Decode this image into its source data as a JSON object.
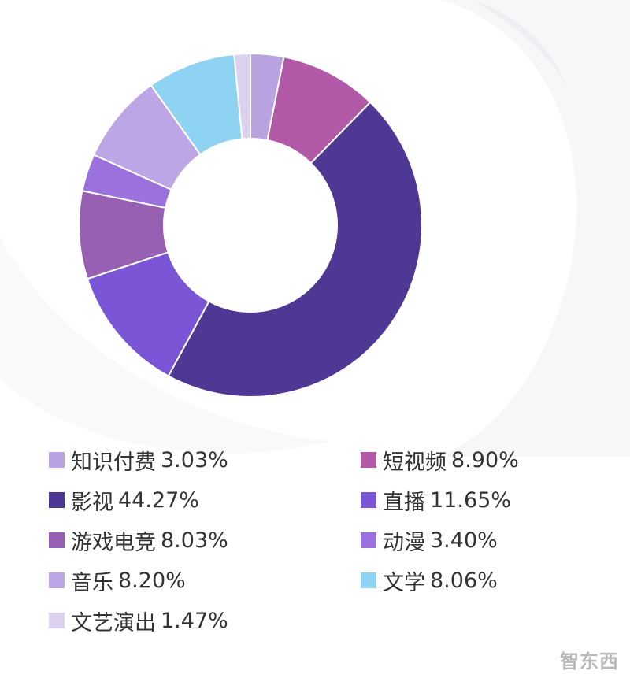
{
  "chart_data": {
    "type": "pie",
    "donut": true,
    "slices": [
      {
        "label": "知识付费",
        "value": 3.03,
        "display": "3.03%",
        "color": "#b8a3e0"
      },
      {
        "label": "短视频",
        "value": 8.9,
        "display": "8.90%",
        "color": "#b25aa8"
      },
      {
        "label": "影视",
        "value": 44.27,
        "display": "44.27%",
        "color": "#4e3894"
      },
      {
        "label": "直播",
        "value": 11.65,
        "display": "11.65%",
        "color": "#7a55d6"
      },
      {
        "label": "游戏电竞",
        "value": 8.03,
        "display": "8.03%",
        "color": "#9860b3"
      },
      {
        "label": "动漫",
        "value": 3.4,
        "display": "3.40%",
        "color": "#9b72dd"
      },
      {
        "label": "音乐",
        "value": 8.2,
        "display": "8.20%",
        "color": "#bda6e6"
      },
      {
        "label": "文学",
        "value": 8.06,
        "display": "8.06%",
        "color": "#8fd3f2"
      },
      {
        "label": "文艺演出",
        "value": 1.47,
        "display": "1.47%",
        "color": "#dcd2f0"
      }
    ],
    "legend_placement": "bottom"
  },
  "watermark": "智东西"
}
